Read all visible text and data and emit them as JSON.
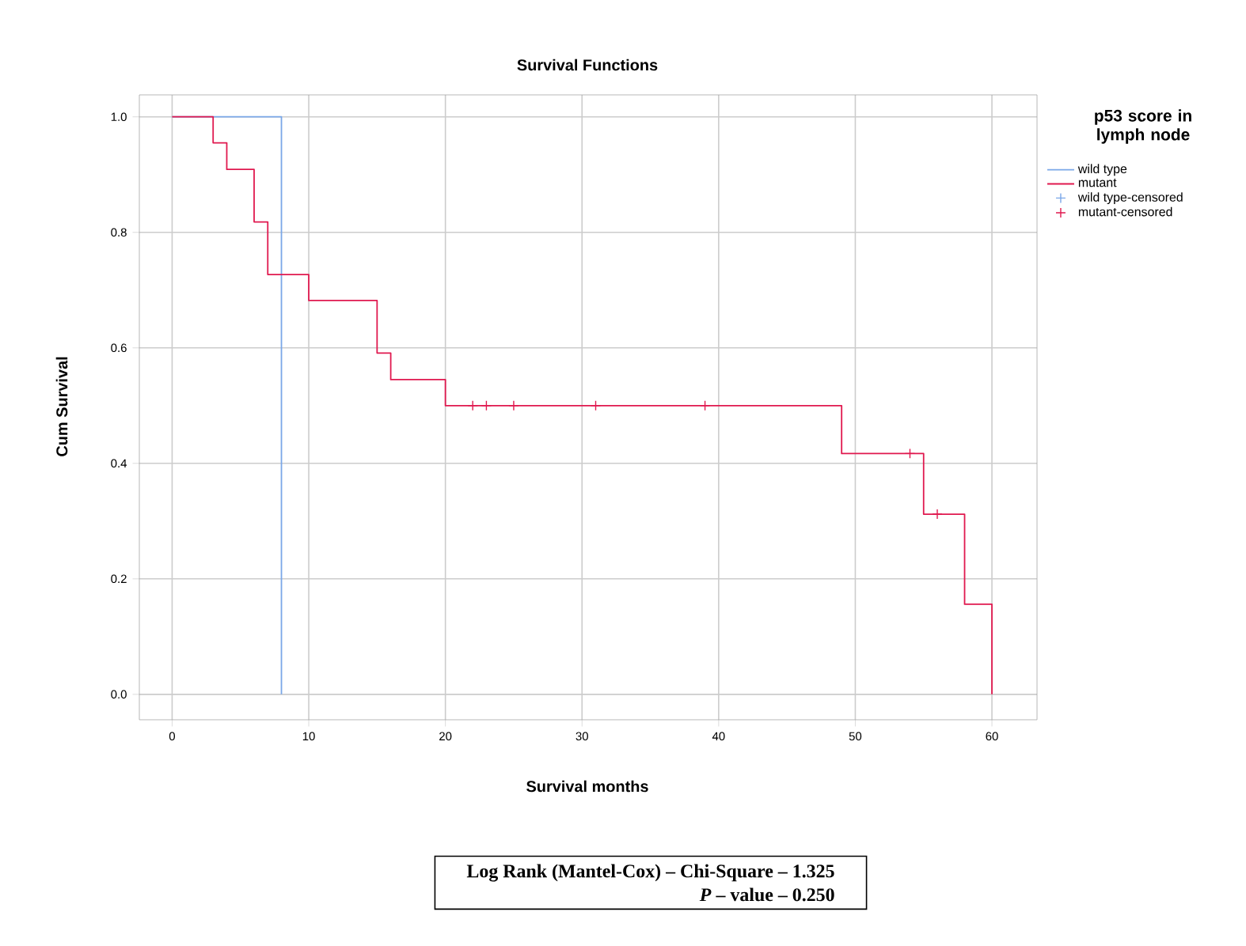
{
  "chart_data": {
    "type": "step",
    "title": "Survival Functions",
    "xlabel": "Survival months",
    "ylabel": "Cum Survival",
    "legend_title": "p53 score in lymph node",
    "series": [
      {
        "name": "wild type",
        "color": "#7aa7e8",
        "x": [
          0,
          8,
          8
        ],
        "values": [
          1.0,
          1.0,
          0.0
        ]
      },
      {
        "name": "mutant",
        "color": "#e0194f",
        "x": [
          0,
          3,
          4,
          6,
          7,
          10,
          15,
          16,
          20,
          49,
          55,
          58,
          60
        ],
        "values": [
          1.0,
          0.955,
          0.909,
          0.818,
          0.727,
          0.682,
          0.591,
          0.545,
          0.5,
          0.417,
          0.312,
          0.156,
          0.0
        ]
      },
      {
        "name": "wild type-censored",
        "type": "scatter",
        "marker": "cross",
        "color": "#7aa7e8"
      },
      {
        "name": "mutant-censored",
        "type": "scatter",
        "marker": "cross",
        "color": "#e0194f",
        "x": [
          22,
          23,
          25,
          31,
          39,
          54,
          56
        ],
        "values": [
          0.5,
          0.5,
          0.5,
          0.5,
          0.5,
          0.417,
          0.312
        ]
      }
    ],
    "xlim": [
      -2.4,
      63.3
    ],
    "ylim": [
      -0.044,
      1.038
    ],
    "xticks": [
      0,
      10,
      20,
      30,
      40,
      50,
      60
    ],
    "yticks": [
      {
        "value": 0,
        "label": "0.0"
      },
      {
        "value": 0.2,
        "label": "0.2"
      },
      {
        "value": 0.4,
        "label": "0.4"
      },
      {
        "value": 0.6,
        "label": "0.6"
      },
      {
        "value": 0.8,
        "label": "0.8"
      },
      {
        "value": 1.0,
        "label": "1.0"
      }
    ],
    "grid": true,
    "legend": "right",
    "annotations": [
      "Log Rank (Mantel-Cox) – Chi-Square – 1.325",
      "*P* – value – 0.250"
    ]
  }
}
